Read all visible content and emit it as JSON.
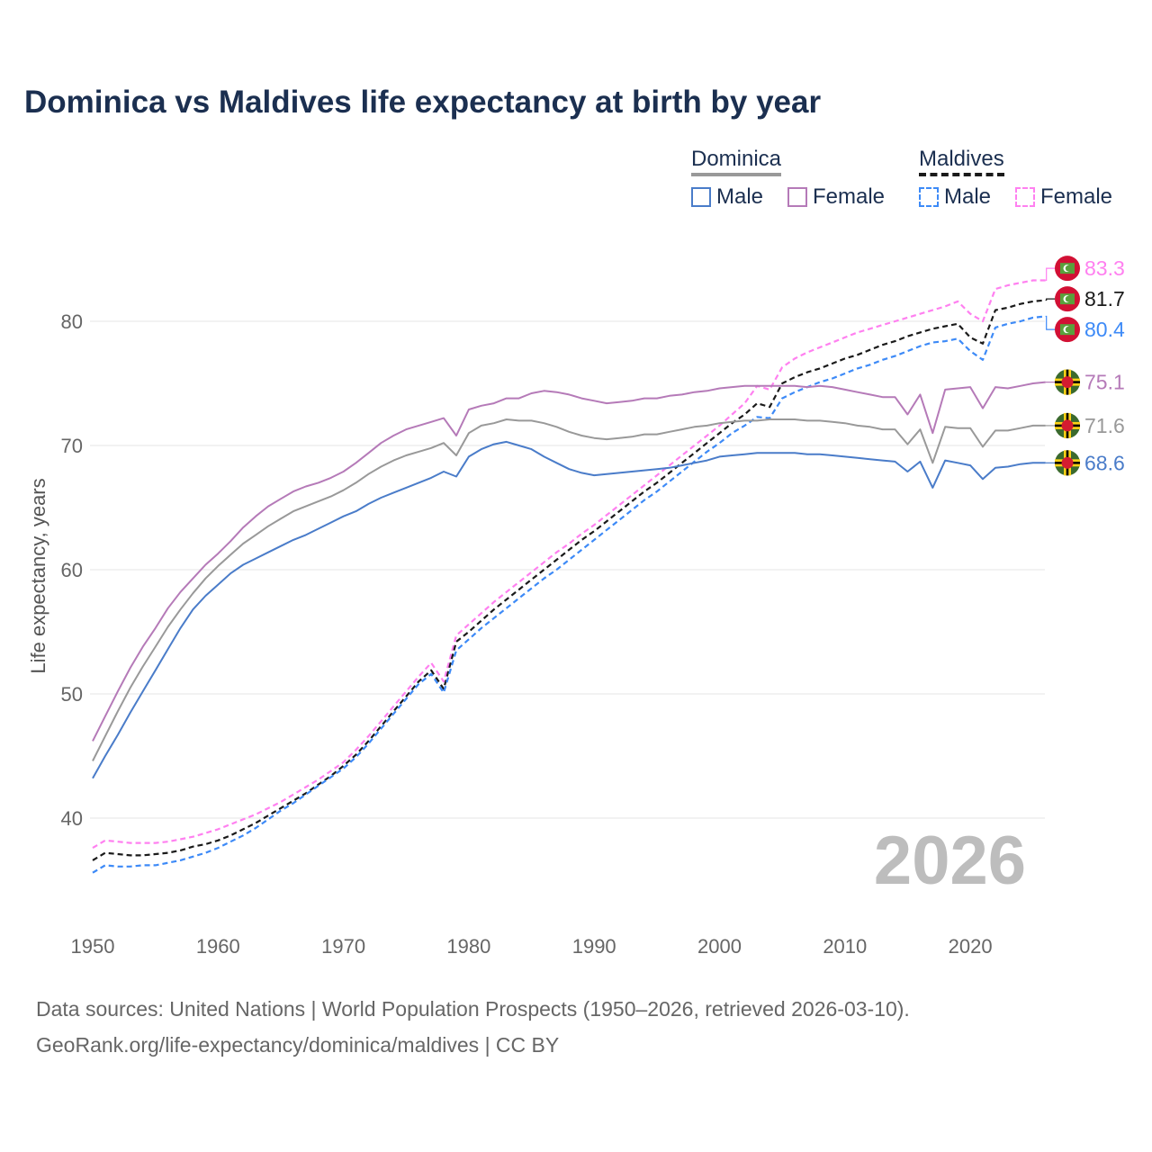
{
  "title": "Dominica vs Maldives life expectancy at birth by year",
  "legend": {
    "groups": [
      {
        "name": "Dominica",
        "items": [
          "Male",
          "Female"
        ]
      },
      {
        "name": "Maldives",
        "items": [
          "Male",
          "Female"
        ]
      }
    ]
  },
  "footer": {
    "line1": "Data sources: United Nations | World Population Prospects (1950–2026, retrieved 2026-03-10).",
    "line2": "GeoRank.org/life-expectancy/dominica/maldives | CC BY"
  },
  "chart_data": {
    "type": "line",
    "title": "Dominica vs Maldives life expectancy at birth by year",
    "xlabel": "",
    "ylabel": "Life expectancy, years",
    "xlim": [
      1950,
      2026
    ],
    "ylim": [
      32,
      86
    ],
    "xticks": [
      1950,
      1960,
      1970,
      1980,
      1990,
      2000,
      2010,
      2020
    ],
    "yticks": [
      40,
      50,
      60,
      70,
      80
    ],
    "grid": true,
    "legend_position": "top-right",
    "year_label": "2026",
    "x_start": 1950,
    "series": [
      {
        "name": "Maldives Female",
        "country": "Maldives",
        "color": "#ff80f0",
        "dashed": true,
        "flag": "maldives",
        "end_label": "83.3",
        "values": [
          37.6,
          38.2,
          38.1,
          38.0,
          38.0,
          38.0,
          38.1,
          38.3,
          38.5,
          38.8,
          39.1,
          39.5,
          39.9,
          40.3,
          40.8,
          41.3,
          41.9,
          42.5,
          43.1,
          43.8,
          44.5,
          45.5,
          46.6,
          47.8,
          49.0,
          50.2,
          51.4,
          52.5,
          51.0,
          54.7,
          55.6,
          56.5,
          57.4,
          58.2,
          59.0,
          59.8,
          60.6,
          61.4,
          62.1,
          62.9,
          63.6,
          64.4,
          65.2,
          66.0,
          66.8,
          67.6,
          68.4,
          69.2,
          70.0,
          70.8,
          71.6,
          72.5,
          73.4,
          74.8,
          74.5,
          76.3,
          77.0,
          77.5,
          77.9,
          78.3,
          78.7,
          79.1,
          79.4,
          79.7,
          80.0,
          80.3,
          80.6,
          80.9,
          81.2,
          81.6,
          80.6,
          80.0,
          82.6,
          82.9,
          83.1,
          83.3,
          83.3
        ]
      },
      {
        "name": "Maldives",
        "country": "Maldives",
        "color": "#1a1a1a",
        "dashed": true,
        "flag": "maldives",
        "end_label": "81.7",
        "values": [
          36.6,
          37.2,
          37.1,
          37.0,
          37.0,
          37.1,
          37.2,
          37.4,
          37.7,
          37.9,
          38.2,
          38.6,
          39.1,
          39.6,
          40.2,
          40.8,
          41.4,
          42.0,
          42.7,
          43.4,
          44.2,
          45.1,
          46.2,
          47.4,
          48.6,
          49.8,
          51.0,
          51.9,
          50.4,
          54.2,
          55.0,
          55.9,
          56.8,
          57.6,
          58.4,
          59.2,
          60.0,
          60.8,
          61.6,
          62.4,
          63.1,
          63.9,
          64.7,
          65.5,
          66.3,
          67.0,
          67.8,
          68.6,
          69.4,
          70.2,
          71.0,
          71.8,
          72.5,
          73.4,
          73.1,
          75.0,
          75.5,
          75.9,
          76.2,
          76.6,
          77.0,
          77.3,
          77.7,
          78.1,
          78.4,
          78.8,
          79.1,
          79.4,
          79.6,
          79.8,
          78.7,
          78.2,
          80.9,
          81.1,
          81.4,
          81.6,
          81.7
        ]
      },
      {
        "name": "Maldives Male",
        "country": "Maldives",
        "color": "#3d8af7",
        "dashed": true,
        "flag": "maldives",
        "end_label": "80.4",
        "values": [
          35.6,
          36.2,
          36.1,
          36.1,
          36.2,
          36.2,
          36.4,
          36.6,
          36.9,
          37.2,
          37.6,
          38.1,
          38.6,
          39.2,
          39.9,
          40.6,
          41.2,
          41.9,
          42.6,
          43.3,
          44.0,
          44.9,
          46.0,
          47.2,
          48.4,
          49.6,
          50.8,
          51.6,
          50.1,
          53.5,
          54.4,
          55.3,
          56.1,
          56.9,
          57.7,
          58.5,
          59.3,
          60.0,
          60.8,
          61.6,
          62.4,
          63.2,
          64.0,
          64.8,
          65.6,
          66.3,
          67.1,
          67.9,
          68.7,
          69.5,
          70.2,
          71.0,
          71.6,
          72.3,
          72.2,
          73.8,
          74.3,
          74.7,
          75.1,
          75.4,
          75.8,
          76.2,
          76.5,
          76.9,
          77.2,
          77.6,
          78.0,
          78.3,
          78.4,
          78.6,
          77.6,
          76.9,
          79.5,
          79.8,
          80.0,
          80.3,
          80.4
        ]
      },
      {
        "name": "Dominica Female",
        "country": "Dominica",
        "color": "#b57ab8",
        "dashed": false,
        "flag": "dominica",
        "end_label": "75.1",
        "values": [
          46.2,
          48.2,
          50.2,
          52.1,
          53.8,
          55.3,
          56.9,
          58.2,
          59.3,
          60.4,
          61.3,
          62.3,
          63.4,
          64.3,
          65.1,
          65.7,
          66.3,
          66.7,
          67.0,
          67.4,
          67.9,
          68.6,
          69.4,
          70.2,
          70.8,
          71.3,
          71.6,
          71.9,
          72.2,
          70.8,
          72.9,
          73.2,
          73.4,
          73.8,
          73.8,
          74.2,
          74.4,
          74.3,
          74.1,
          73.8,
          73.6,
          73.4,
          73.5,
          73.6,
          73.8,
          73.8,
          74.0,
          74.1,
          74.3,
          74.4,
          74.6,
          74.7,
          74.8,
          74.8,
          74.8,
          74.8,
          74.8,
          74.7,
          74.8,
          74.7,
          74.5,
          74.3,
          74.1,
          73.9,
          73.9,
          72.5,
          74.1,
          71.0,
          74.5,
          74.6,
          74.7,
          73.0,
          74.7,
          74.6,
          74.8,
          75.0,
          75.1
        ]
      },
      {
        "name": "Dominica",
        "country": "Dominica",
        "color": "#999999",
        "dashed": false,
        "flag": "dominica",
        "end_label": "71.6",
        "values": [
          44.6,
          46.6,
          48.6,
          50.5,
          52.2,
          53.8,
          55.4,
          56.8,
          58.1,
          59.3,
          60.3,
          61.2,
          62.1,
          62.8,
          63.5,
          64.1,
          64.7,
          65.1,
          65.5,
          65.9,
          66.4,
          67.0,
          67.7,
          68.3,
          68.8,
          69.2,
          69.5,
          69.8,
          70.2,
          69.2,
          71.0,
          71.6,
          71.8,
          72.1,
          72.0,
          72.0,
          71.8,
          71.5,
          71.1,
          70.8,
          70.6,
          70.5,
          70.6,
          70.7,
          70.9,
          70.9,
          71.1,
          71.3,
          71.5,
          71.6,
          71.8,
          71.9,
          72.0,
          72.0,
          72.1,
          72.1,
          72.1,
          72.0,
          72.0,
          71.9,
          71.8,
          71.6,
          71.5,
          71.3,
          71.3,
          70.1,
          71.3,
          68.6,
          71.5,
          71.4,
          71.4,
          69.9,
          71.2,
          71.2,
          71.4,
          71.6,
          71.6
        ]
      },
      {
        "name": "Dominica Male",
        "country": "Dominica",
        "color": "#4a7cc9",
        "dashed": false,
        "flag": "dominica",
        "end_label": "68.6",
        "values": [
          43.2,
          45.0,
          46.7,
          48.5,
          50.2,
          51.9,
          53.6,
          55.3,
          56.8,
          57.9,
          58.8,
          59.7,
          60.4,
          60.9,
          61.4,
          61.9,
          62.4,
          62.8,
          63.3,
          63.8,
          64.3,
          64.7,
          65.3,
          65.8,
          66.2,
          66.6,
          67.0,
          67.4,
          67.9,
          67.5,
          69.1,
          69.7,
          70.1,
          70.3,
          70.0,
          69.7,
          69.1,
          68.6,
          68.1,
          67.8,
          67.6,
          67.7,
          67.8,
          67.9,
          68.0,
          68.1,
          68.2,
          68.4,
          68.6,
          68.8,
          69.1,
          69.2,
          69.3,
          69.4,
          69.4,
          69.4,
          69.4,
          69.3,
          69.3,
          69.2,
          69.1,
          69.0,
          68.9,
          68.8,
          68.7,
          67.9,
          68.7,
          66.6,
          68.8,
          68.6,
          68.4,
          67.3,
          68.2,
          68.3,
          68.5,
          68.6,
          68.6
        ]
      }
    ]
  }
}
